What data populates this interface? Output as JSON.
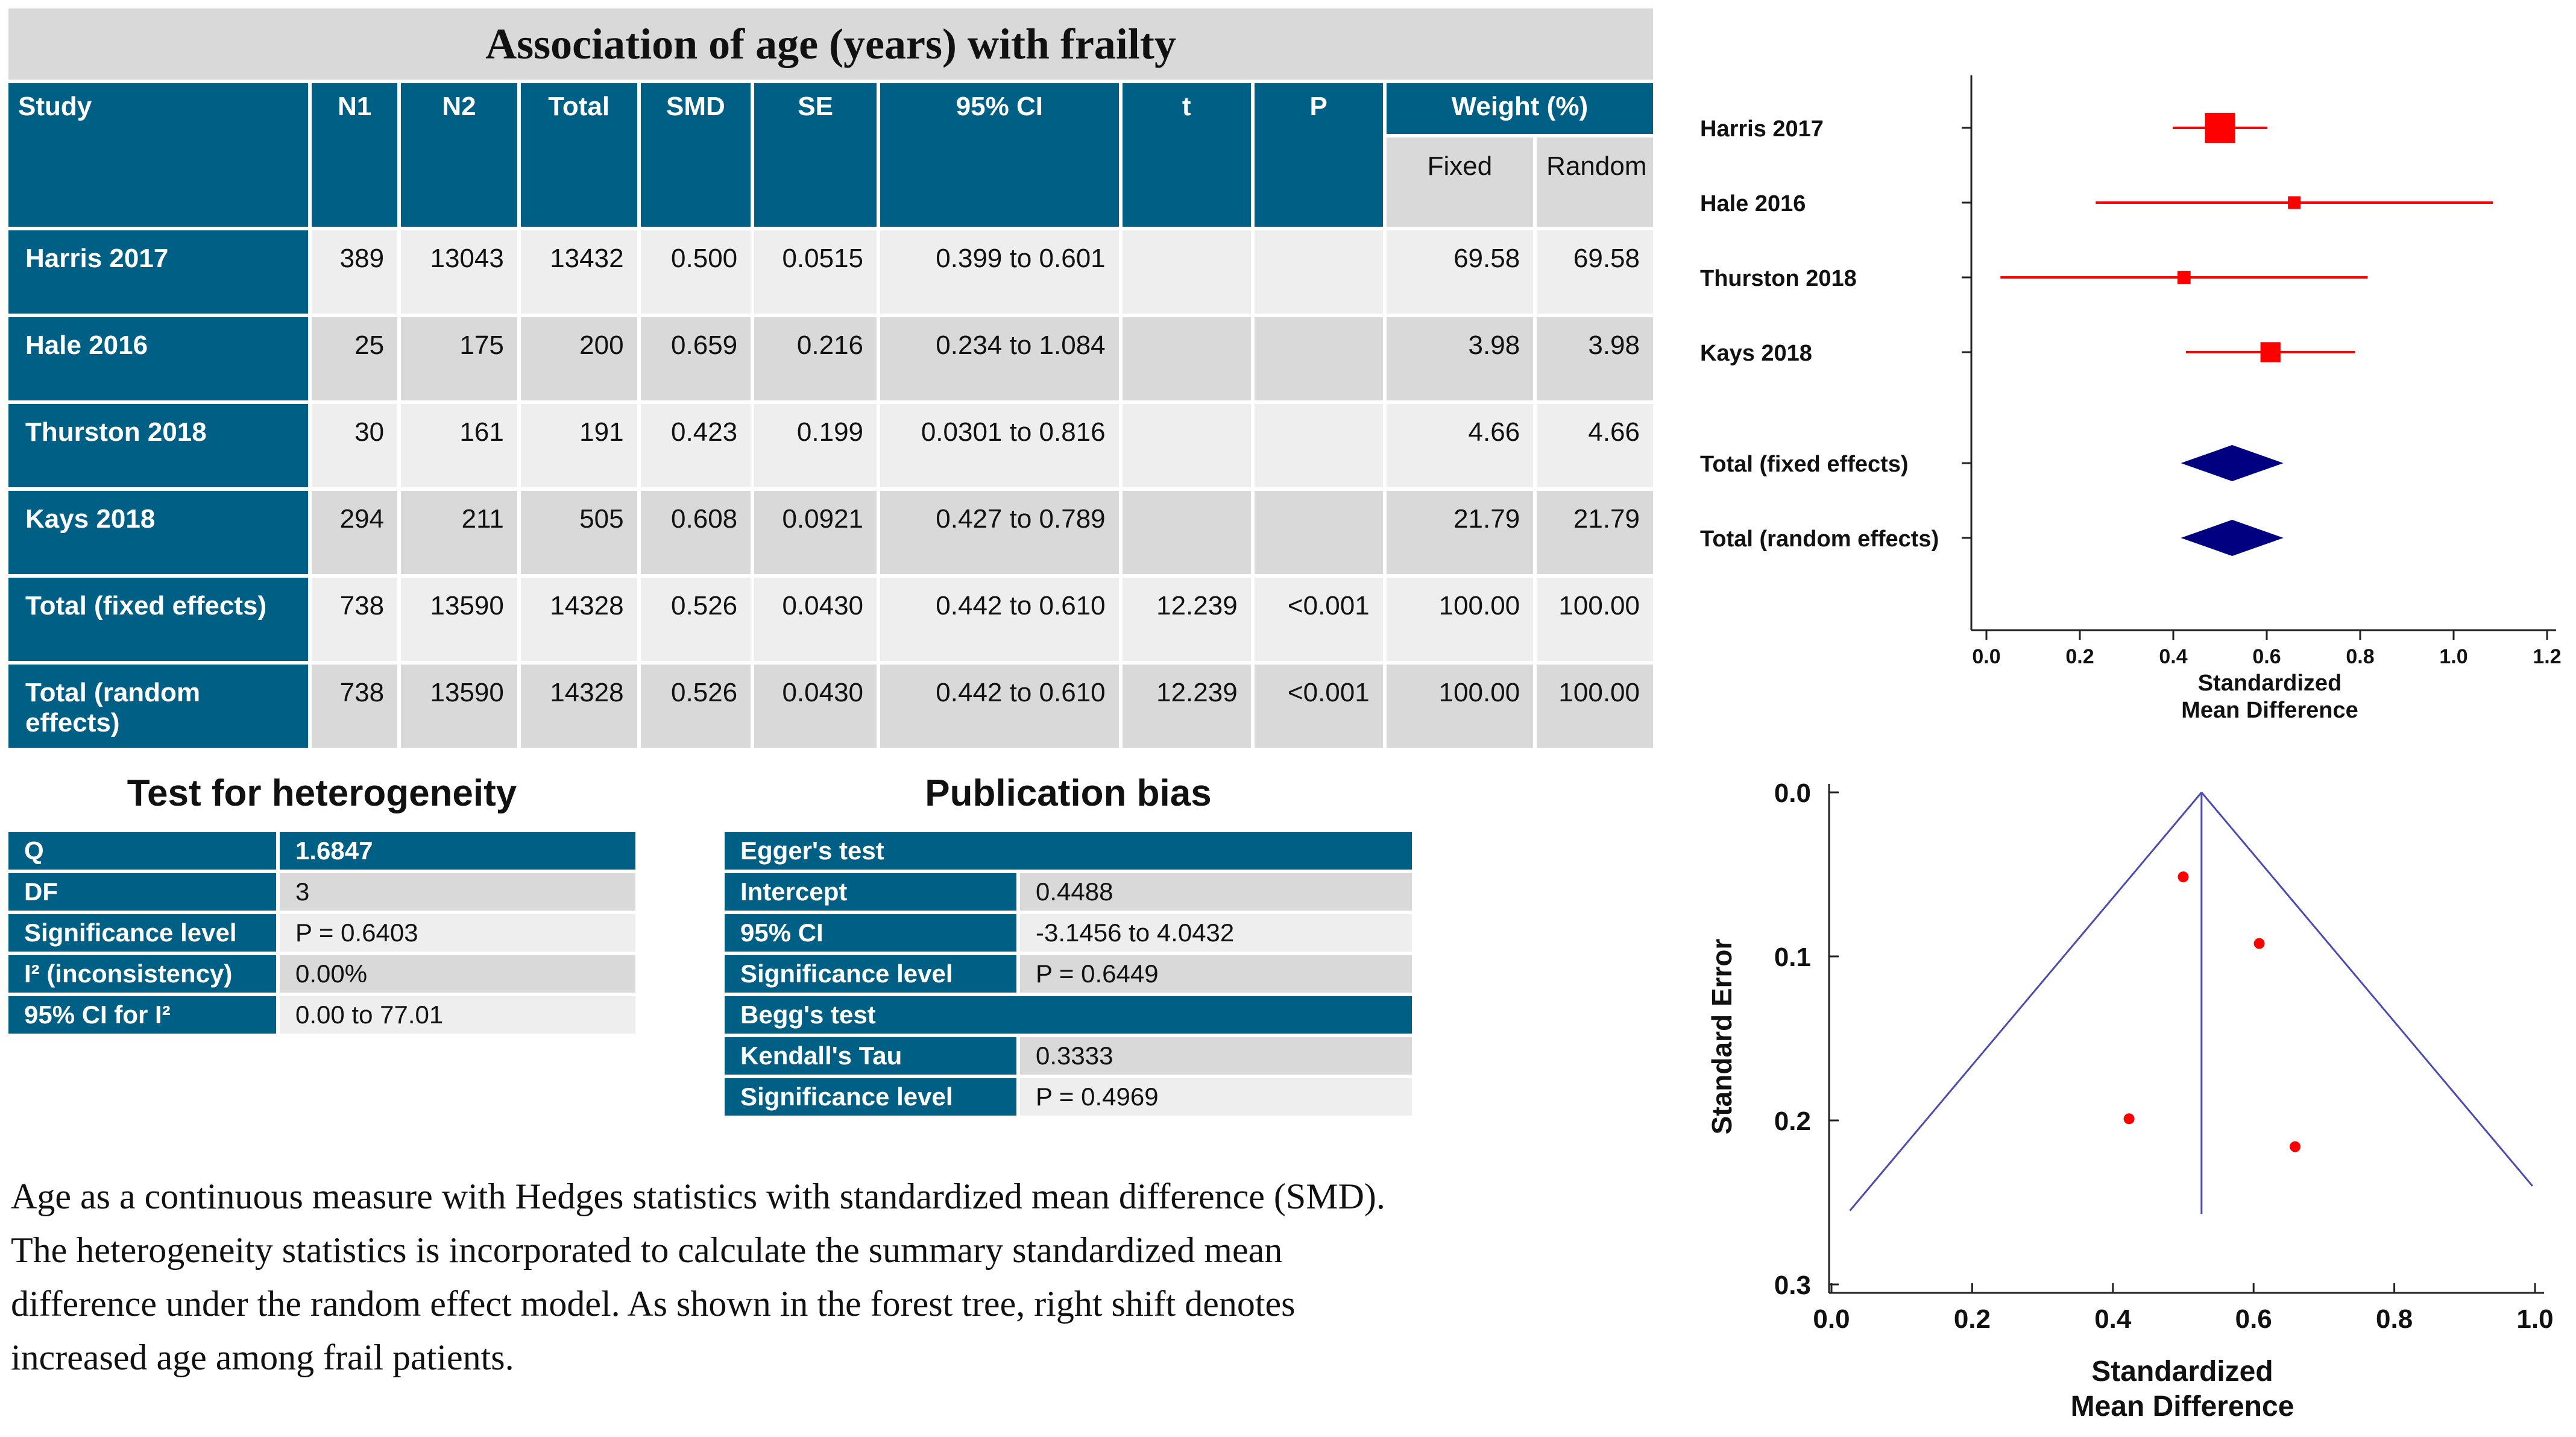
{
  "main": {
    "title": "Association of age (years) with frailty",
    "columns": [
      "Study",
      "N1",
      "N2",
      "Total",
      "SMD",
      "SE",
      "95% CI",
      "t",
      "P",
      "Weight (%)"
    ],
    "weight_subcolumns": [
      "Fixed",
      "Random"
    ],
    "rows": [
      {
        "study": "Harris 2017",
        "n1": "389",
        "n2": "13043",
        "total": "13432",
        "smd": "0.500",
        "se": "0.0515",
        "ci": "0.399 to 0.601",
        "t": "",
        "p": "",
        "fixed": "69.58",
        "random": "69.58"
      },
      {
        "study": "Hale 2016",
        "n1": "25",
        "n2": "175",
        "total": "200",
        "smd": "0.659",
        "se": "0.216",
        "ci": "0.234 to 1.084",
        "t": "",
        "p": "",
        "fixed": "3.98",
        "random": "3.98"
      },
      {
        "study": "Thurston 2018",
        "n1": "30",
        "n2": "161",
        "total": "191",
        "smd": "0.423",
        "se": "0.199",
        "ci": "0.0301 to 0.816",
        "t": "",
        "p": "",
        "fixed": "4.66",
        "random": "4.66"
      },
      {
        "study": "Kays 2018",
        "n1": "294",
        "n2": "211",
        "total": "505",
        "smd": "0.608",
        "se": "0.0921",
        "ci": "0.427 to 0.789",
        "t": "",
        "p": "",
        "fixed": "21.79",
        "random": "21.79"
      },
      {
        "study": "Total (fixed effects)",
        "n1": "738",
        "n2": "13590",
        "total": "14328",
        "smd": "0.526",
        "se": "0.0430",
        "ci": "0.442 to 0.610",
        "t": "12.239",
        "p": "<0.001",
        "fixed": "100.00",
        "random": "100.00"
      },
      {
        "study": "Total (random effects)",
        "n1": "738",
        "n2": "13590",
        "total": "14328",
        "smd": "0.526",
        "se": "0.0430",
        "ci": "0.442 to 0.610",
        "t": "12.239",
        "p": "<0.001",
        "fixed": "100.00",
        "random": "100.00"
      }
    ]
  },
  "heterogeneity": {
    "title": "Test for heterogeneity",
    "rows": [
      {
        "key": "Q",
        "value": "1.6847"
      },
      {
        "key": "DF",
        "value": "3"
      },
      {
        "key": "Significance level",
        "value": "P = 0.6403"
      },
      {
        "key": "I² (inconsistency)",
        "value": "0.00%"
      },
      {
        "key": "95% CI for I²",
        "value": "0.00 to 77.01"
      }
    ]
  },
  "bias": {
    "title": "Publication bias",
    "egger_header": "Egger's test",
    "egger": [
      {
        "key": "Intercept",
        "value": "0.4488"
      },
      {
        "key": "95% CI",
        "value": "-3.1456 to 4.0432"
      },
      {
        "key": "Significance level",
        "value": "P = 0.6449"
      }
    ],
    "begg_header": "Begg's test",
    "begg": [
      {
        "key": "Kendall's Tau",
        "value": "0.3333"
      },
      {
        "key": "Significance level",
        "value": "P = 0.4969"
      }
    ]
  },
  "caption": [
    "Age as a continuous measure with Hedges statistics with standardized mean difference (SMD).",
    "The heterogeneity statistics is incorporated to calculate the summary standardized mean",
    "difference under the random effect model. As shown in the forest tree, right shift denotes",
    "increased age among frail patients."
  ],
  "colors": {
    "header": "#005f84",
    "cell_light": "#eeeeee",
    "cell_dark": "#d9d9d9",
    "marker": "#ff0000",
    "diamond": "#000080",
    "funnel": "#4b4bb0"
  },
  "chart_data": [
    {
      "type": "forest",
      "title": "",
      "xlabel_lines": [
        "Standardized",
        "Mean Difference"
      ],
      "xlim": [
        0.0,
        1.2
      ],
      "xticks": [
        "0.0",
        "0.2",
        "0.4",
        "0.6",
        "0.8",
        "1.0",
        "1.2"
      ],
      "studies": [
        {
          "label": "Harris 2017",
          "smd": 0.5,
          "lo": 0.399,
          "hi": 0.601,
          "weight": 69.58
        },
        {
          "label": "Hale 2016",
          "smd": 0.659,
          "lo": 0.234,
          "hi": 1.084,
          "weight": 3.98
        },
        {
          "label": "Thurston 2018",
          "smd": 0.423,
          "lo": 0.0301,
          "hi": 0.816,
          "weight": 4.66
        },
        {
          "label": "Kays 2018",
          "smd": 0.608,
          "lo": 0.427,
          "hi": 0.789,
          "weight": 21.79
        }
      ],
      "totals": [
        {
          "label": "Total (fixed effects)",
          "smd": 0.526,
          "lo": 0.442,
          "hi": 0.61
        },
        {
          "label": "Total (random effects)",
          "smd": 0.526,
          "lo": 0.442,
          "hi": 0.61
        }
      ]
    },
    {
      "type": "scatter",
      "subtype": "funnel",
      "xlabel_lines": [
        "Standardized",
        "Mean Difference"
      ],
      "ylabel": "Standard Error",
      "xlim": [
        0.0,
        1.0
      ],
      "ylim": [
        0.3,
        0.0
      ],
      "xticks": [
        "0.0",
        "0.2",
        "0.4",
        "0.6",
        "0.8",
        "1.0"
      ],
      "yticks": [
        "0.0",
        "0.1",
        "0.2",
        "0.3"
      ],
      "pooled_smd": 0.526,
      "points": [
        {
          "x": 0.5,
          "y": 0.0515
        },
        {
          "x": 0.608,
          "y": 0.0921
        },
        {
          "x": 0.423,
          "y": 0.199
        },
        {
          "x": 0.659,
          "y": 0.216
        }
      ]
    }
  ]
}
